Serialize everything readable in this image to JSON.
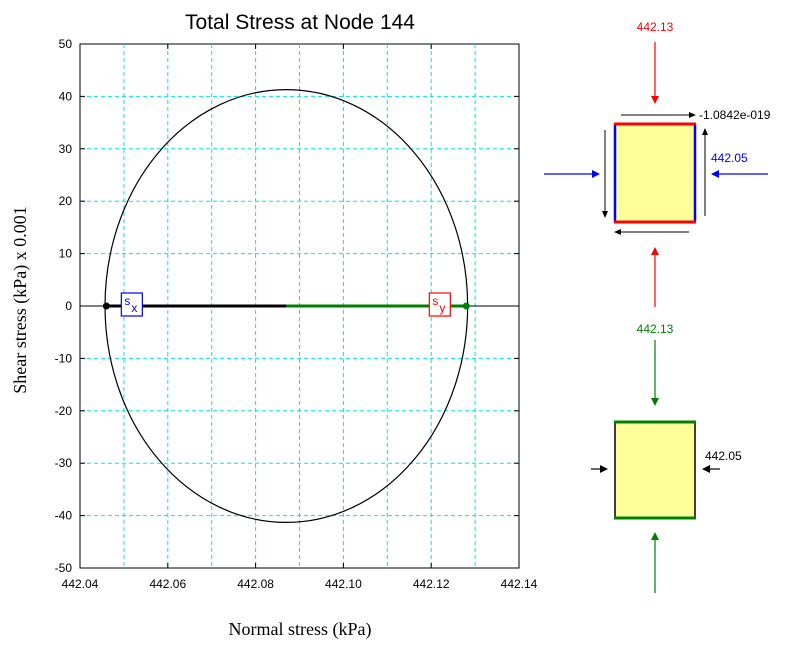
{
  "chart_data": {
    "type": "line",
    "title": "Total Stress at Node 144",
    "xlabel": "Normal stress (kPa)",
    "ylabel": "Shear stress (kPa) x 0.001",
    "xlim": [
      442.04,
      442.14
    ],
    "ylim": [
      -50,
      50
    ],
    "x_ticks": [
      "442.04",
      "442.06",
      "442.08",
      "442.10",
      "442.12",
      "442.14"
    ],
    "y_ticks": [
      "50",
      "40",
      "30",
      "20",
      "10",
      "0",
      "-10",
      "-20",
      "-30",
      "-40",
      "-50"
    ],
    "grid": true,
    "mohr_circle": {
      "center": 442.087,
      "radius": 0.0413
    },
    "points": [
      {
        "label": "s",
        "subscript": "x",
        "x": 442.046,
        "y": 0,
        "color": "#0000ff"
      },
      {
        "label": "s",
        "subscript": "y",
        "x": 442.128,
        "y": 0,
        "color": "#ff0000"
      }
    ],
    "diameter_segments": [
      {
        "from": 442.046,
        "to": 442.087,
        "color": "#000000"
      },
      {
        "from": 442.087,
        "to": 442.128,
        "color": "#008000"
      }
    ]
  },
  "element_top": {
    "vertical_stress": "442.13",
    "horizontal_stress": "442.05",
    "shear_stress": "-1.0842e-019"
  },
  "element_bottom": {
    "vertical_stress": "442.13",
    "horizontal_stress": "442.05"
  },
  "colors": {
    "grid": "#00e5e5",
    "element_fill": "#ffff99",
    "red": "#ff0000",
    "blue": "#0000ff",
    "green": "#008000"
  }
}
